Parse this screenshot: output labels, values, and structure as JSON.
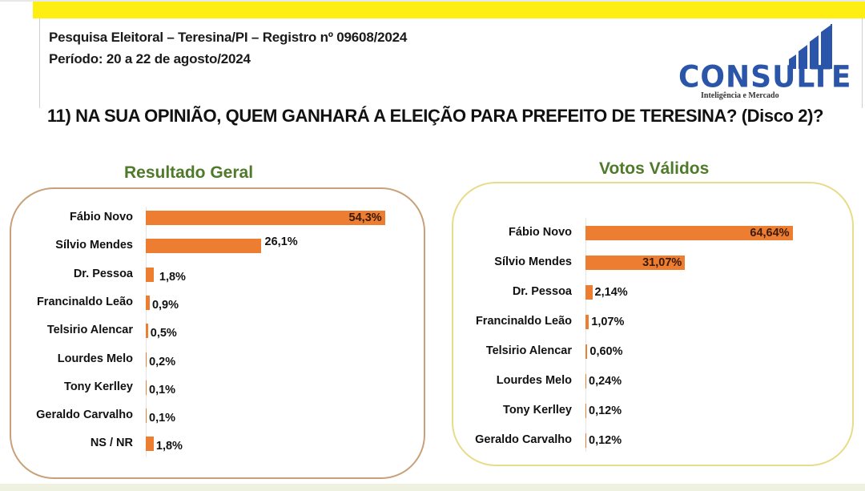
{
  "header": {
    "line1": "Pesquisa Eleitoral – Teresina/PI  – Registro nº 09608/2024",
    "line2": "Período: 20 a 22 de agosto/2024"
  },
  "logo": {
    "name": "CONSULTE",
    "tagline": "Inteligência e Mercado",
    "color": "#2a55a8"
  },
  "question": "11) NA SUA OPINIÃO, QUEM GANHARÁ A ELEIÇÃO PARA PREFEITO   DE TERESINA? (Disco 2)?",
  "colors": {
    "bar": "#ed7d31",
    "title": "#4f7a2a",
    "banner": "#ffee11"
  },
  "chart_data": [
    {
      "type": "bar",
      "orientation": "horizontal",
      "title": "Resultado Geral",
      "categories": [
        "Fábio Novo",
        "Sílvio Mendes",
        "Dr. Pessoa",
        "Francinaldo Leão",
        "Telsirio Alencar",
        "Lourdes Melo",
        "Tony Kerlley",
        "Geraldo Carvalho",
        "NS / NR"
      ],
      "values": [
        54.3,
        26.1,
        1.8,
        0.9,
        0.5,
        0.2,
        0.1,
        0.1,
        1.8
      ],
      "labels": [
        "54,3%",
        "26,1%",
        "1,8%",
        "0,9%",
        "0,5%",
        "0,2%",
        "0,1%",
        "0,1%",
        "1,8%"
      ],
      "xlabel": "",
      "ylabel": "",
      "grid": false,
      "legend": "none"
    },
    {
      "type": "bar",
      "orientation": "horizontal",
      "title": "Votos Válidos",
      "categories": [
        "Fábio Novo",
        "Sílvio Mendes",
        "Dr. Pessoa",
        "Francinaldo Leão",
        "Telsirio Alencar",
        "Lourdes Melo",
        "Tony Kerlley",
        "Geraldo Carvalho"
      ],
      "values": [
        64.64,
        31.07,
        2.14,
        1.07,
        0.6,
        0.24,
        0.12,
        0.12
      ],
      "labels": [
        "64,64%",
        "31,07%",
        "2,14%",
        "1,07%",
        "0,60%",
        "0,24%",
        "0,12%",
        "0,12%"
      ],
      "xlabel": "",
      "ylabel": "",
      "grid": false,
      "legend": "none"
    }
  ]
}
